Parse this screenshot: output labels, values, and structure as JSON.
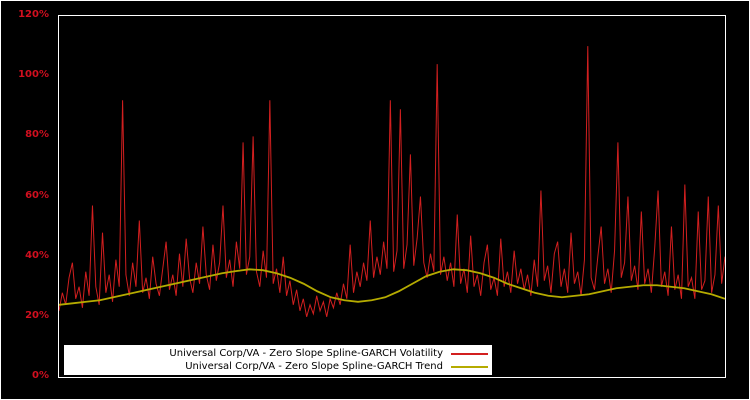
{
  "window": {
    "background_color": "#000000",
    "frame_color": "#ffffff"
  },
  "chart_data": {
    "type": "line",
    "title": "",
    "xlabel": "",
    "ylabel": "",
    "grid": false,
    "legend_position": "bottom-inside-white-box",
    "y_axis": {
      "range": [
        0,
        120
      ],
      "ticks": [
        "0%",
        "20%",
        "40%",
        "60%",
        "80%",
        "100%",
        "120%"
      ],
      "tick_values": [
        0,
        20,
        40,
        60,
        80,
        100,
        120
      ],
      "label_color": "#d10f1f"
    },
    "x_axis": {
      "ticks": [],
      "note": "no visible x-axis labels"
    },
    "series": [
      {
        "name": "Universal Corp/VA - Zero Slope Spline-GARCH Volatility",
        "color": "#d21f1f",
        "unit": "%",
        "values": [
          22,
          28,
          24,
          33,
          38,
          26,
          30,
          23,
          35,
          27,
          57,
          30,
          24,
          48,
          28,
          34,
          25,
          39,
          30,
          92,
          34,
          27,
          38,
          30,
          52,
          28,
          33,
          26,
          40,
          31,
          27,
          36,
          45,
          29,
          34,
          27,
          41,
          30,
          46,
          33,
          28,
          38,
          31,
          50,
          34,
          29,
          44,
          32,
          38,
          57,
          33,
          39,
          30,
          45,
          36,
          78,
          34,
          40,
          80,
          35,
          30,
          42,
          33,
          92,
          31,
          36,
          28,
          40,
          27,
          32,
          24,
          29,
          22,
          26,
          20,
          24,
          21,
          27,
          22,
          25,
          20,
          26,
          23,
          28,
          24,
          31,
          26,
          44,
          28,
          35,
          30,
          38,
          32,
          52,
          33,
          40,
          34,
          45,
          36,
          92,
          35,
          42,
          89,
          36,
          44,
          74,
          37,
          46,
          60,
          38,
          33,
          41,
          35,
          104,
          34,
          40,
          32,
          38,
          30,
          54,
          31,
          36,
          28,
          47,
          30,
          34,
          27,
          38,
          44,
          29,
          33,
          27,
          46,
          30,
          35,
          28,
          42,
          31,
          36,
          29,
          34,
          27,
          39,
          30,
          62,
          32,
          37,
          28,
          41,
          45,
          30,
          36,
          28,
          48,
          31,
          35,
          27,
          39,
          110,
          33,
          29,
          40,
          50,
          31,
          36,
          28,
          42,
          78,
          33,
          38,
          60,
          32,
          37,
          29,
          55,
          31,
          36,
          28,
          43,
          62,
          30,
          35,
          27,
          50,
          29,
          34,
          26,
          64,
          30,
          33,
          26,
          55,
          29,
          32,
          60,
          28,
          34,
          57,
          31,
          40
        ]
      },
      {
        "name": "Universal Corp/VA - Zero Slope Spline-GARCH Trend",
        "color": "#b5ab00",
        "unit": "%",
        "values": [
          24,
          24.5,
          25,
          25.5,
          26.5,
          27.5,
          28.5,
          29.5,
          30.5,
          31.5,
          32.5,
          33.5,
          34.5,
          35.2,
          35.8,
          35.5,
          34.5,
          33,
          31,
          28.5,
          26.5,
          25.5,
          25,
          25.5,
          26.5,
          28.5,
          31,
          33.5,
          35,
          35.8,
          35.5,
          34.5,
          33,
          31,
          29.5,
          28,
          27,
          26.5,
          27,
          27.5,
          28.5,
          29.5,
          30,
          30.5,
          30.5,
          30,
          29.5,
          28.5,
          27.5,
          26
        ]
      }
    ]
  },
  "legend": {
    "items": [
      {
        "series_index": 0
      },
      {
        "series_index": 1
      }
    ]
  }
}
